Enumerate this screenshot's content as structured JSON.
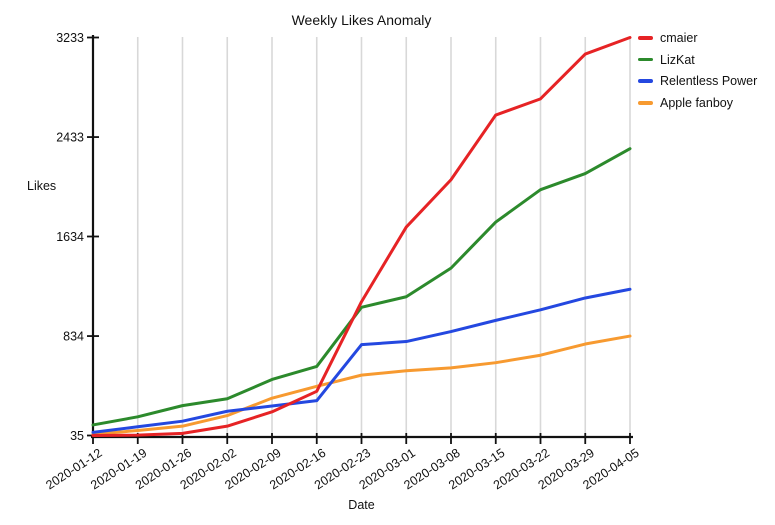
{
  "chart_data": {
    "type": "line",
    "title": "Weekly Likes Anomaly",
    "xlabel": "Date",
    "ylabel": "Likes",
    "x": [
      "2020-01-12",
      "2020-01-19",
      "2020-01-26",
      "2020-02-02",
      "2020-02-09",
      "2020-02-16",
      "2020-02-23",
      "2020-03-01",
      "2020-03-08",
      "2020-03-15",
      "2020-03-22",
      "2020-03-29",
      "2020-04-05"
    ],
    "yticks": [
      35,
      834,
      1634,
      2433,
      3233
    ],
    "ylim": [
      35,
      3233
    ],
    "grid": "vertical-only",
    "legend_position": "top-right",
    "series": [
      {
        "name": "cmaier",
        "color": "#e62325",
        "values": [
          35,
          38,
          52,
          110,
          225,
          390,
          1110,
          1710,
          2090,
          2610,
          2740,
          3100,
          3233
        ]
      },
      {
        "name": "LizKat",
        "color": "#2c8a2c",
        "values": [
          120,
          185,
          275,
          330,
          485,
          590,
          1065,
          1150,
          1380,
          1750,
          2010,
          2140,
          2340
        ]
      },
      {
        "name": "Relentless Power",
        "color": "#2448e0",
        "values": [
          60,
          105,
          150,
          230,
          272,
          315,
          765,
          790,
          870,
          960,
          1045,
          1140,
          1210
        ]
      },
      {
        "name": "Apple fanboy",
        "color": "#f79a30",
        "values": [
          45,
          75,
          110,
          195,
          335,
          430,
          520,
          555,
          578,
          620,
          680,
          770,
          834
        ]
      }
    ],
    "style": {
      "grid_color": "#d8d8d8",
      "axis_color": "#111111",
      "background": "#ffffff"
    }
  }
}
